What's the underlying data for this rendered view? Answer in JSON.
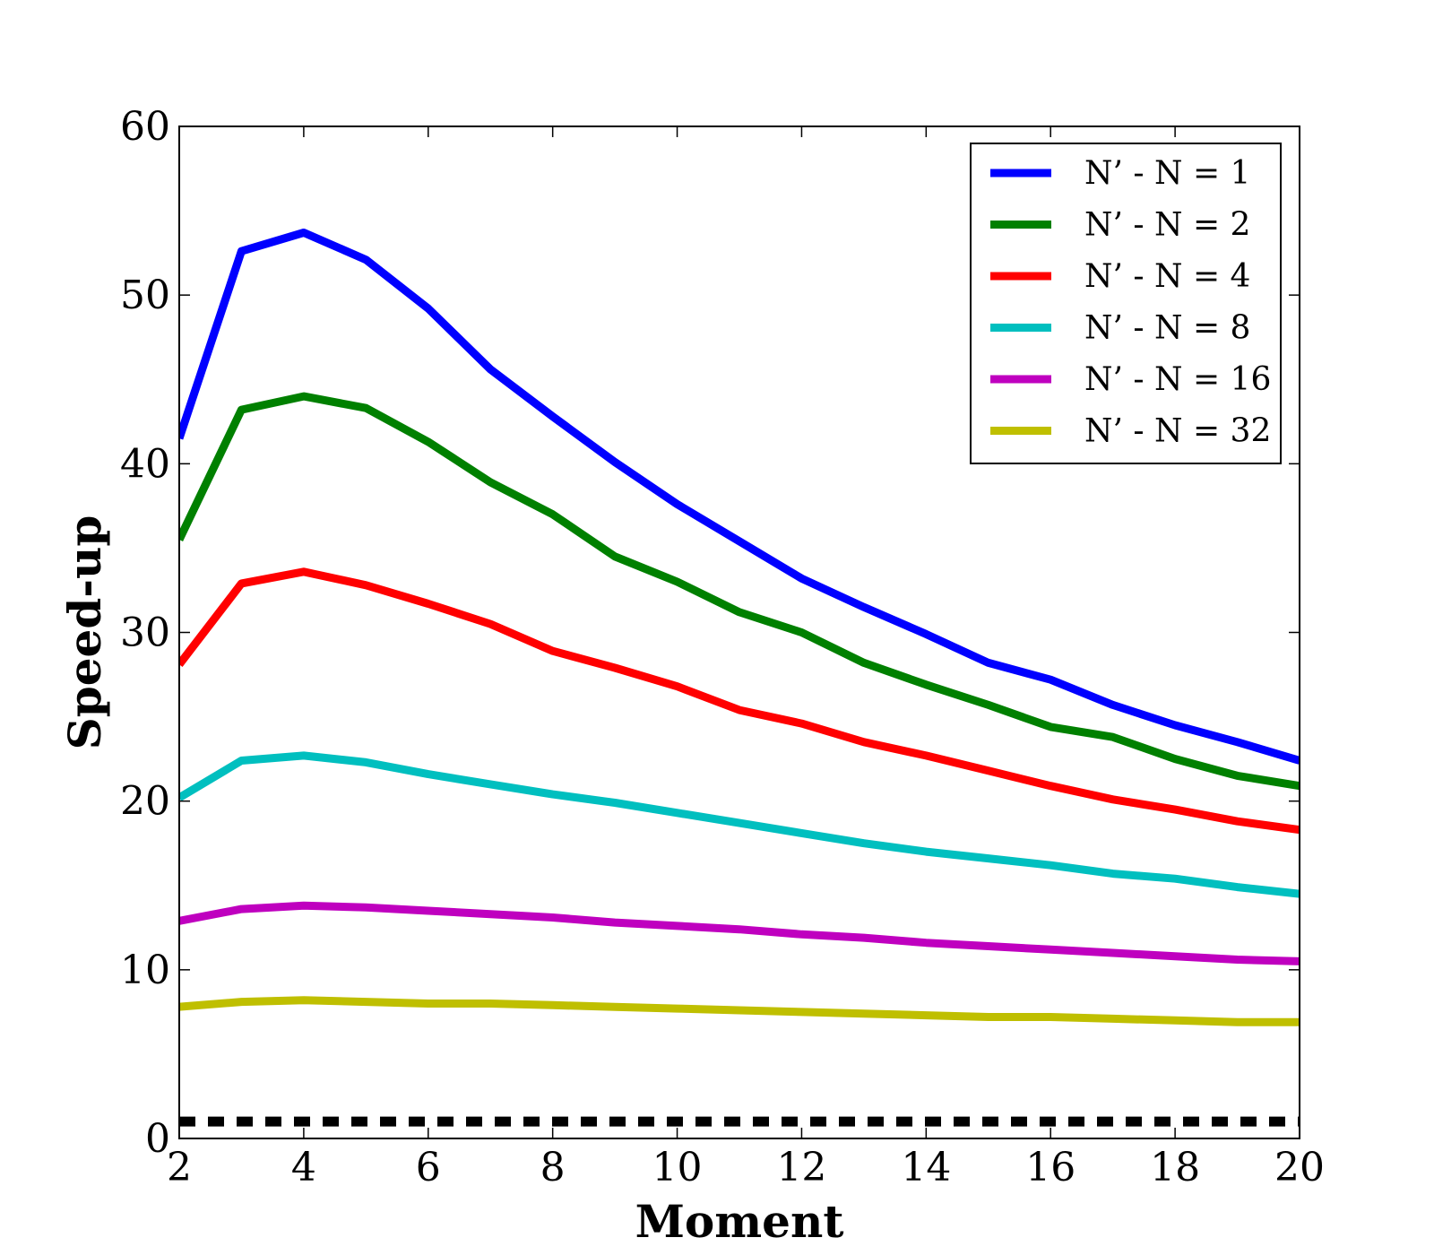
{
  "chart_data": {
    "type": "line",
    "title": "",
    "xlabel": "Moment",
    "ylabel": "Speed-up",
    "xlim": [
      2,
      20
    ],
    "ylim": [
      0,
      60
    ],
    "xticks": [
      2,
      4,
      6,
      8,
      10,
      12,
      14,
      16,
      18,
      20
    ],
    "yticks": [
      0,
      10,
      20,
      30,
      40,
      50,
      60
    ],
    "grid": false,
    "legend_position": "top-right",
    "x": [
      2,
      3,
      4,
      5,
      6,
      7,
      8,
      9,
      10,
      11,
      12,
      13,
      14,
      15,
      16,
      17,
      18,
      19,
      20
    ],
    "series": [
      {
        "name": "N’ - N = 1",
        "color": "#0000ff",
        "values": [
          41.5,
          52.6,
          53.7,
          52.1,
          49.2,
          45.6,
          42.8,
          40.1,
          37.6,
          35.4,
          33.2,
          31.5,
          29.9,
          28.2,
          27.2,
          25.7,
          24.5,
          23.5,
          22.4
        ]
      },
      {
        "name": "N’ - N = 2",
        "color": "#008000",
        "values": [
          35.5,
          43.2,
          44.0,
          43.3,
          41.3,
          38.9,
          37.0,
          34.5,
          33.0,
          31.2,
          30.0,
          28.2,
          26.9,
          25.7,
          24.4,
          23.8,
          22.5,
          21.5,
          20.9
        ]
      },
      {
        "name": "N’ - N = 4",
        "color": "#ff0000",
        "values": [
          28.1,
          32.9,
          33.6,
          32.8,
          31.7,
          30.5,
          28.9,
          27.9,
          26.8,
          25.4,
          24.6,
          23.5,
          22.7,
          21.8,
          20.9,
          20.1,
          19.5,
          18.8,
          18.3
        ]
      },
      {
        "name": "N’ - N = 8",
        "color": "#00bfbf",
        "values": [
          20.2,
          22.4,
          22.7,
          22.3,
          21.6,
          21.0,
          20.4,
          19.9,
          19.3,
          18.7,
          18.1,
          17.5,
          17.0,
          16.6,
          16.2,
          15.7,
          15.4,
          14.9,
          14.5
        ]
      },
      {
        "name": "N’ - N = 16",
        "color": "#bf00bf",
        "values": [
          12.9,
          13.6,
          13.8,
          13.7,
          13.5,
          13.3,
          13.1,
          12.8,
          12.6,
          12.4,
          12.1,
          11.9,
          11.6,
          11.4,
          11.2,
          11.0,
          10.8,
          10.6,
          10.5
        ]
      },
      {
        "name": "N’ - N = 32",
        "color": "#bfbf00",
        "values": [
          7.8,
          8.1,
          8.2,
          8.1,
          8.0,
          8.0,
          7.9,
          7.8,
          7.7,
          7.6,
          7.5,
          7.4,
          7.3,
          7.2,
          7.2,
          7.1,
          7.0,
          6.9,
          6.9
        ]
      }
    ],
    "reference_line": {
      "y": 1,
      "style": "dashed",
      "color": "#000000"
    }
  }
}
